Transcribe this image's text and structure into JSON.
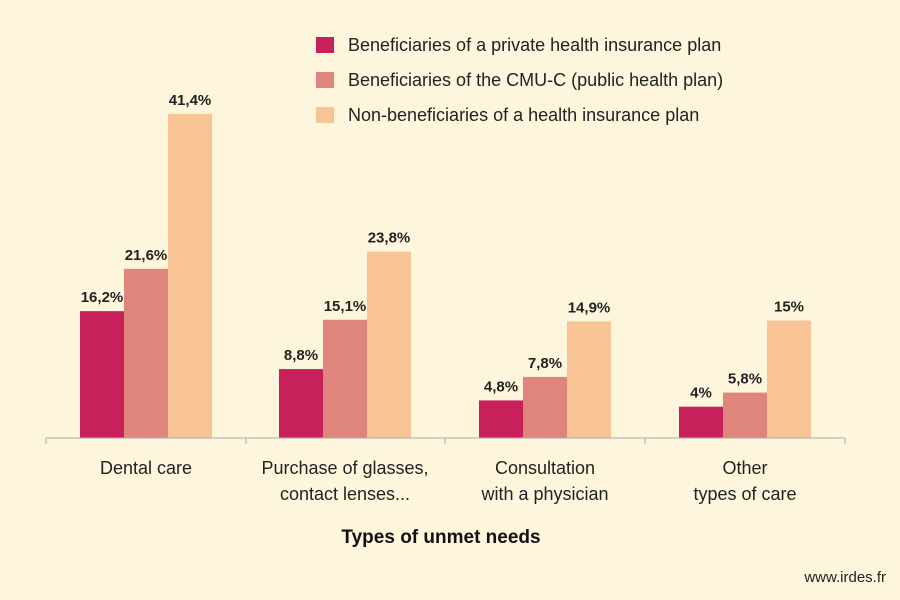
{
  "chart_data": {
    "type": "bar",
    "title": "",
    "xlabel": "Types of unmet needs",
    "ylabel": "",
    "ylim": [
      0,
      45
    ],
    "categories": [
      [
        "Dental care"
      ],
      [
        "Purchase of glasses,",
        "contact lenses..."
      ],
      [
        "Consultation",
        "with a physician"
      ],
      [
        "Other",
        "types of care"
      ]
    ],
    "series": [
      {
        "name": "Beneficiaries of a private health insurance plan",
        "color": "#c8205a",
        "values": [
          16.2,
          8.8,
          4.8,
          4
        ],
        "labels": [
          "16,2%",
          "8,8%",
          "4,8%",
          "4%"
        ]
      },
      {
        "name": "Beneficiaries of the CMU-C (public health plan)",
        "color": "#e0857c",
        "values": [
          21.6,
          15.1,
          7.8,
          5.8
        ],
        "labels": [
          "21,6%",
          "15,1%",
          "7,8%",
          "5,8%"
        ]
      },
      {
        "name": "Non-beneficiaries of a health insurance plan",
        "color": "#f8c496",
        "values": [
          41.4,
          23.8,
          14.9,
          15
        ],
        "labels": [
          "41,4%",
          "23,8%",
          "14,9%",
          "15%"
        ]
      }
    ],
    "legend_position": "top-right",
    "grid": false
  },
  "footer": {
    "source": "www.irdes.fr"
  },
  "colors": {
    "background": "#fdf5dc",
    "axis": "#aaaaaa"
  }
}
